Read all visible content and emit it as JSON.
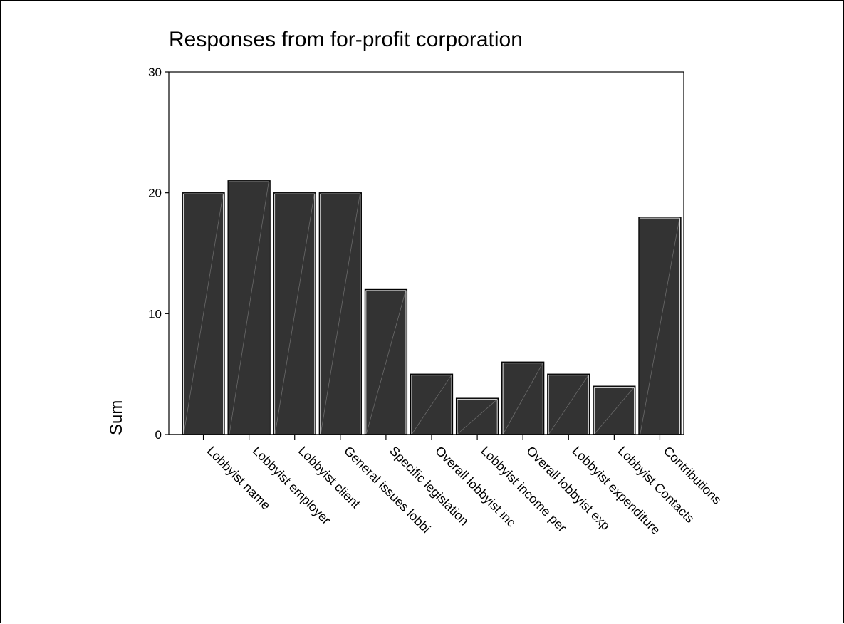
{
  "chart_data": {
    "type": "bar",
    "title": "Responses from for-profit corporation",
    "xlabel": "",
    "ylabel": "Sum",
    "ylim": [
      0,
      30
    ],
    "yticks": [
      0,
      10,
      20,
      30
    ],
    "categories": [
      "Lobbyist name",
      "Lobbyist employer",
      "Lobbyist client",
      "General issues lobbi",
      "Specific legislation",
      "Overall lobbyist inc",
      "Lobbyist income per",
      "Overall lobbyist exp",
      "Lobbyist expenditure",
      "Lobbyist Contacts",
      "Contributions"
    ],
    "values": [
      20,
      21,
      20,
      20,
      12,
      5,
      3,
      6,
      5,
      4,
      18
    ],
    "bar_color": "#333333",
    "grid": false,
    "legend": "none"
  }
}
